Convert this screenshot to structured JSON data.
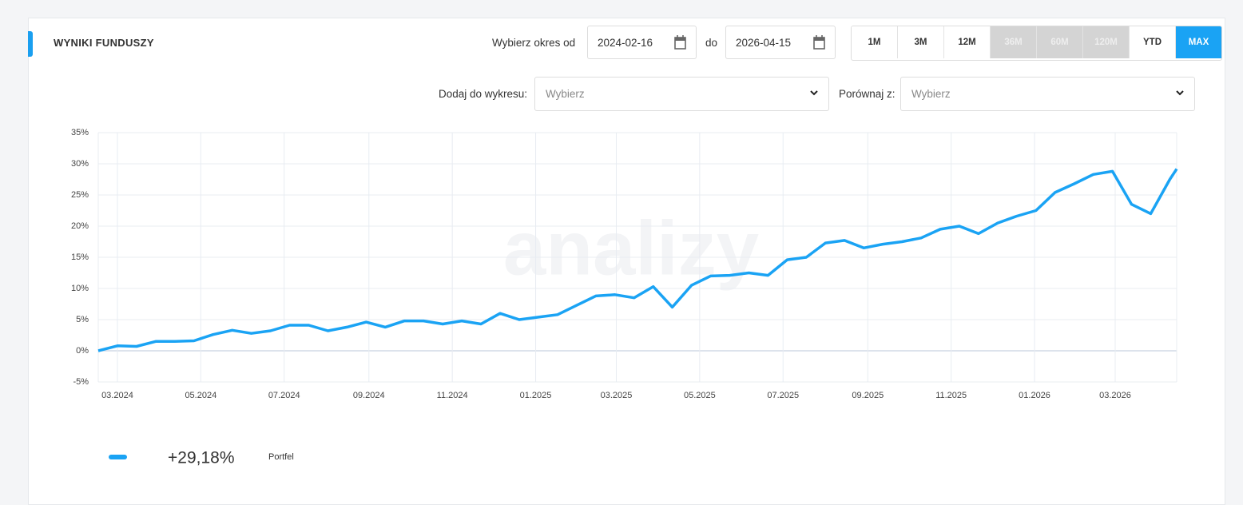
{
  "header": {
    "title": "WYNIKI FUNDUSZY",
    "period_label": "Wybierz okres od",
    "date_from": "2024-02-16",
    "to_label": "do",
    "date_to": "2026-04-15",
    "ranges": [
      "1M",
      "3M",
      "12M",
      "36M",
      "60M",
      "120M",
      "YTD",
      "MAX"
    ],
    "disabled_ranges": [
      "36M",
      "60M",
      "120M"
    ],
    "active_range": "MAX"
  },
  "controls": {
    "add_label": "Dodaj do wykresu:",
    "add_placeholder": "Wybierz",
    "compare_label": "Porównaj z:",
    "compare_placeholder": "Wybierz"
  },
  "watermark": "analizy",
  "chart_data": {
    "type": "line",
    "grid": true,
    "summary": "+29,18%",
    "xlim": [
      "2024-02-16",
      "2026-04-15"
    ],
    "xticks": [
      {
        "value": "2024-03-01",
        "label": "03.2024"
      },
      {
        "value": "2024-05-01",
        "label": "05.2024"
      },
      {
        "value": "2024-07-01",
        "label": "07.2024"
      },
      {
        "value": "2024-09-01",
        "label": "09.2024"
      },
      {
        "value": "2024-11-01",
        "label": "11.2024"
      },
      {
        "value": "2025-01-01",
        "label": "01.2025"
      },
      {
        "value": "2025-03-01",
        "label": "03.2025"
      },
      {
        "value": "2025-05-01",
        "label": "05.2025"
      },
      {
        "value": "2025-07-01",
        "label": "07.2025"
      },
      {
        "value": "2025-09-01",
        "label": "09.2025"
      },
      {
        "value": "2025-11-01",
        "label": "11.2025"
      },
      {
        "value": "2026-01-01",
        "label": "01.2026"
      },
      {
        "value": "2026-03-01",
        "label": "03.2026"
      }
    ],
    "ylim": [
      -5,
      35
    ],
    "yticks": [
      {
        "value": -5,
        "label": "-5%"
      },
      {
        "value": 0,
        "label": "0%"
      },
      {
        "value": 5,
        "label": "5%"
      },
      {
        "value": 10,
        "label": "10%"
      },
      {
        "value": 15,
        "label": "15%"
      },
      {
        "value": 20,
        "label": "20%"
      },
      {
        "value": 25,
        "label": "25%"
      },
      {
        "value": 30,
        "label": "30%"
      },
      {
        "value": 35,
        "label": "35%"
      }
    ],
    "x": [
      "2024-02-16",
      "2024-03-01",
      "2024-03-15",
      "2024-03-29",
      "2024-04-12",
      "2024-04-26",
      "2024-05-10",
      "2024-05-24",
      "2024-06-07",
      "2024-06-21",
      "2024-07-05",
      "2024-07-19",
      "2024-08-02",
      "2024-08-16",
      "2024-08-30",
      "2024-09-13",
      "2024-09-27",
      "2024-10-11",
      "2024-10-25",
      "2024-11-08",
      "2024-11-22",
      "2024-12-06",
      "2024-12-20",
      "2025-01-03",
      "2025-01-17",
      "2025-01-31",
      "2025-02-14",
      "2025-02-28",
      "2025-03-14",
      "2025-03-28",
      "2025-04-11",
      "2025-04-25",
      "2025-05-09",
      "2025-05-23",
      "2025-06-06",
      "2025-06-20",
      "2025-07-04",
      "2025-07-18",
      "2025-08-01",
      "2025-08-15",
      "2025-08-29",
      "2025-09-12",
      "2025-09-26",
      "2025-10-10",
      "2025-10-24",
      "2025-11-07",
      "2025-11-21",
      "2025-12-05",
      "2025-12-19",
      "2026-01-02",
      "2026-01-16",
      "2026-01-30",
      "2026-02-13",
      "2026-02-27",
      "2026-03-13",
      "2026-03-27",
      "2026-04-10",
      "2026-04-15"
    ],
    "series": [
      {
        "name": "Portfel",
        "color": "#1aa3f4",
        "values": [
          0,
          0.8,
          0.7,
          1.5,
          1.5,
          1.6,
          2.6,
          3.3,
          2.8,
          3.2,
          4.1,
          4.1,
          3.2,
          3.8,
          4.6,
          3.8,
          4.8,
          4.8,
          4.3,
          4.8,
          4.3,
          6.0,
          5.0,
          5.4,
          5.8,
          7.3,
          8.8,
          9.0,
          8.5,
          10.3,
          7.0,
          10.5,
          12.0,
          12.1,
          12.5,
          12.1,
          14.6,
          15.0,
          17.3,
          17.7,
          16.5,
          17.1,
          17.5,
          18.1,
          19.5,
          20.0,
          18.8,
          20.5,
          21.6,
          22.5,
          25.4,
          26.8,
          28.3,
          28.8,
          23.5,
          22.0,
          27.5,
          29.18
        ]
      }
    ]
  }
}
